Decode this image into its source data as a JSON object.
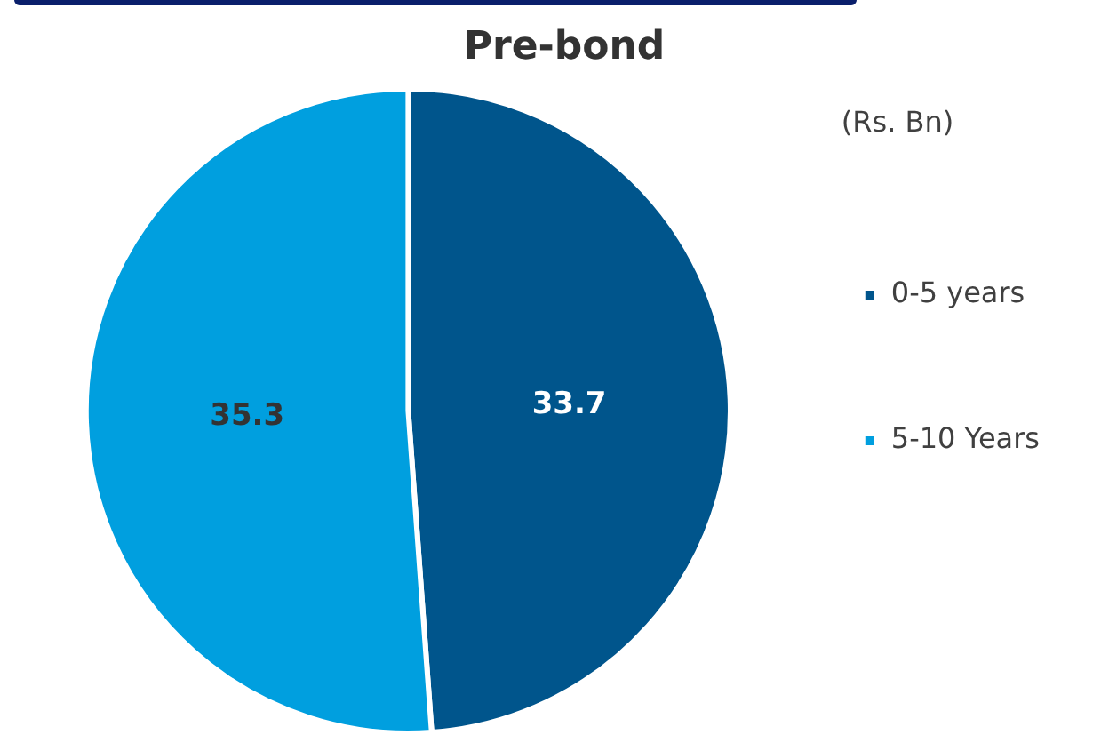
{
  "chart_data": {
    "type": "pie",
    "title": "Pre-bond",
    "categories": [
      "0-5 years",
      "5-10 Years"
    ],
    "values": [
      33.7,
      35.3
    ],
    "colors": [
      "#00558c",
      "#009fdf"
    ],
    "data_labels": true,
    "legend": "right",
    "annotations": [
      "(Rs. Bn)"
    ]
  }
}
